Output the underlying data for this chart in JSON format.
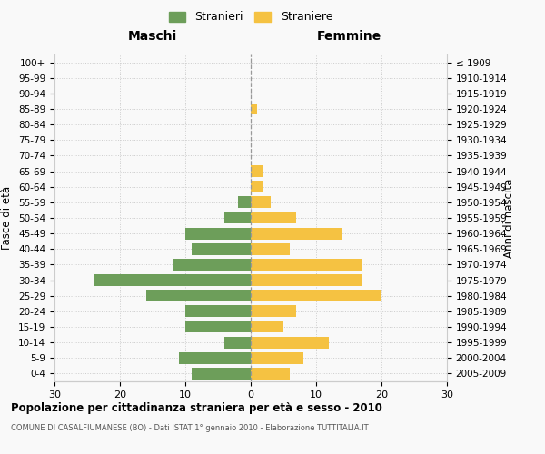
{
  "age_groups": [
    "0-4",
    "5-9",
    "10-14",
    "15-19",
    "20-24",
    "25-29",
    "30-34",
    "35-39",
    "40-44",
    "45-49",
    "50-54",
    "55-59",
    "60-64",
    "65-69",
    "70-74",
    "75-79",
    "80-84",
    "85-89",
    "90-94",
    "95-99",
    "100+"
  ],
  "birth_years": [
    "2005-2009",
    "2000-2004",
    "1995-1999",
    "1990-1994",
    "1985-1989",
    "1980-1984",
    "1975-1979",
    "1970-1974",
    "1965-1969",
    "1960-1964",
    "1955-1959",
    "1950-1954",
    "1945-1949",
    "1940-1944",
    "1935-1939",
    "1930-1934",
    "1925-1929",
    "1920-1924",
    "1915-1919",
    "1910-1914",
    "≤ 1909"
  ],
  "males": [
    9,
    11,
    4,
    10,
    10,
    16,
    24,
    12,
    9,
    10,
    4,
    2,
    0,
    0,
    0,
    0,
    0,
    0,
    0,
    0,
    0
  ],
  "females": [
    6,
    8,
    12,
    5,
    7,
    20,
    17,
    17,
    6,
    14,
    7,
    3,
    2,
    2,
    0,
    0,
    0,
    1,
    0,
    0,
    0
  ],
  "male_color": "#6d9e5a",
  "female_color": "#f5c242",
  "background_color": "#f9f9f9",
  "grid_color": "#cccccc",
  "title": "Popolazione per cittadinanza straniera per età e sesso - 2010",
  "subtitle": "COMUNE DI CASALFIUMANESE (BO) - Dati ISTAT 1° gennaio 2010 - Elaborazione TUTTITALIA.IT",
  "xlabel_left": "Maschi",
  "xlabel_right": "Femmine",
  "ylabel_left": "Fasce di età",
  "ylabel_right": "Anni di nascita",
  "legend_male": "Stranieri",
  "legend_female": "Straniere",
  "xlim": 30,
  "bar_height": 0.75
}
